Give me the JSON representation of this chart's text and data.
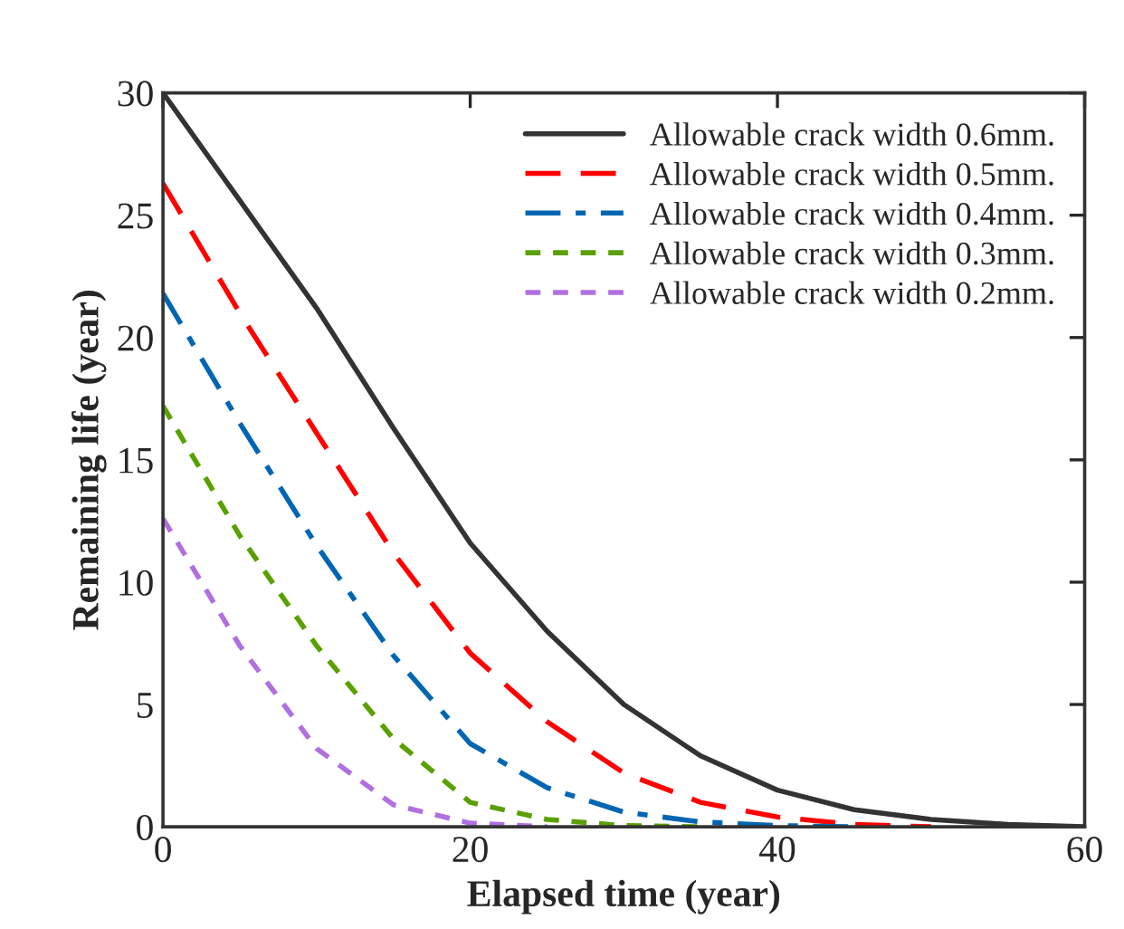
{
  "chart_data": {
    "type": "line",
    "xlabel": "Elapsed time (year)",
    "ylabel": "Remaining life (year)",
    "xlim": [
      0,
      60
    ],
    "xticks": [
      0,
      20,
      40,
      60
    ],
    "ylim": [
      0,
      30
    ],
    "yticks": [
      0,
      5,
      10,
      15,
      20,
      25,
      30
    ],
    "legend": "top right",
    "grid": false,
    "marker": "none",
    "series": [
      {
        "name": "Allowable crack width 0.6mm.",
        "color": "#333333",
        "line_style": "solid",
        "x": [
          0,
          5,
          10,
          15,
          20,
          25,
          30,
          35,
          40,
          45,
          50,
          55,
          60
        ],
        "values": [
          30,
          25.6,
          21.2,
          16.3,
          11.6,
          8.0,
          5.0,
          2.9,
          1.5,
          0.7,
          0.3,
          0.1,
          0
        ]
      },
      {
        "name": "Allowable crack width 0.5mm.",
        "color": "#ff0000",
        "line_style": "dashed",
        "x": [
          0,
          5,
          10,
          15,
          20,
          25,
          30,
          35,
          40,
          45,
          50
        ],
        "values": [
          26.3,
          21.0,
          16.1,
          11.2,
          7.1,
          4.3,
          2.2,
          1.0,
          0.4,
          0.1,
          0
        ]
      },
      {
        "name": "Allowable crack width 0.4mm.",
        "color": "#0066b3",
        "line_style": "dashdot",
        "x": [
          0,
          5,
          10,
          15,
          20,
          25,
          30,
          35,
          40,
          45
        ],
        "values": [
          21.8,
          16.5,
          11.5,
          7.0,
          3.4,
          1.6,
          0.6,
          0.2,
          0.05,
          0
        ]
      },
      {
        "name": "Allowable crack width 0.3mm.",
        "color": "#5aa000",
        "line_style": "dotted",
        "x": [
          0,
          5,
          10,
          15,
          20,
          25,
          30,
          35
        ],
        "values": [
          17.2,
          11.9,
          7.4,
          3.6,
          1.0,
          0.3,
          0.05,
          0
        ]
      },
      {
        "name": "Allowable crack width 0.2mm.",
        "color": "#b070e0",
        "line_style": "dotted",
        "x": [
          0,
          5,
          10,
          15,
          20,
          25
        ],
        "values": [
          12.6,
          7.4,
          3.2,
          0.9,
          0.15,
          0
        ]
      }
    ]
  }
}
